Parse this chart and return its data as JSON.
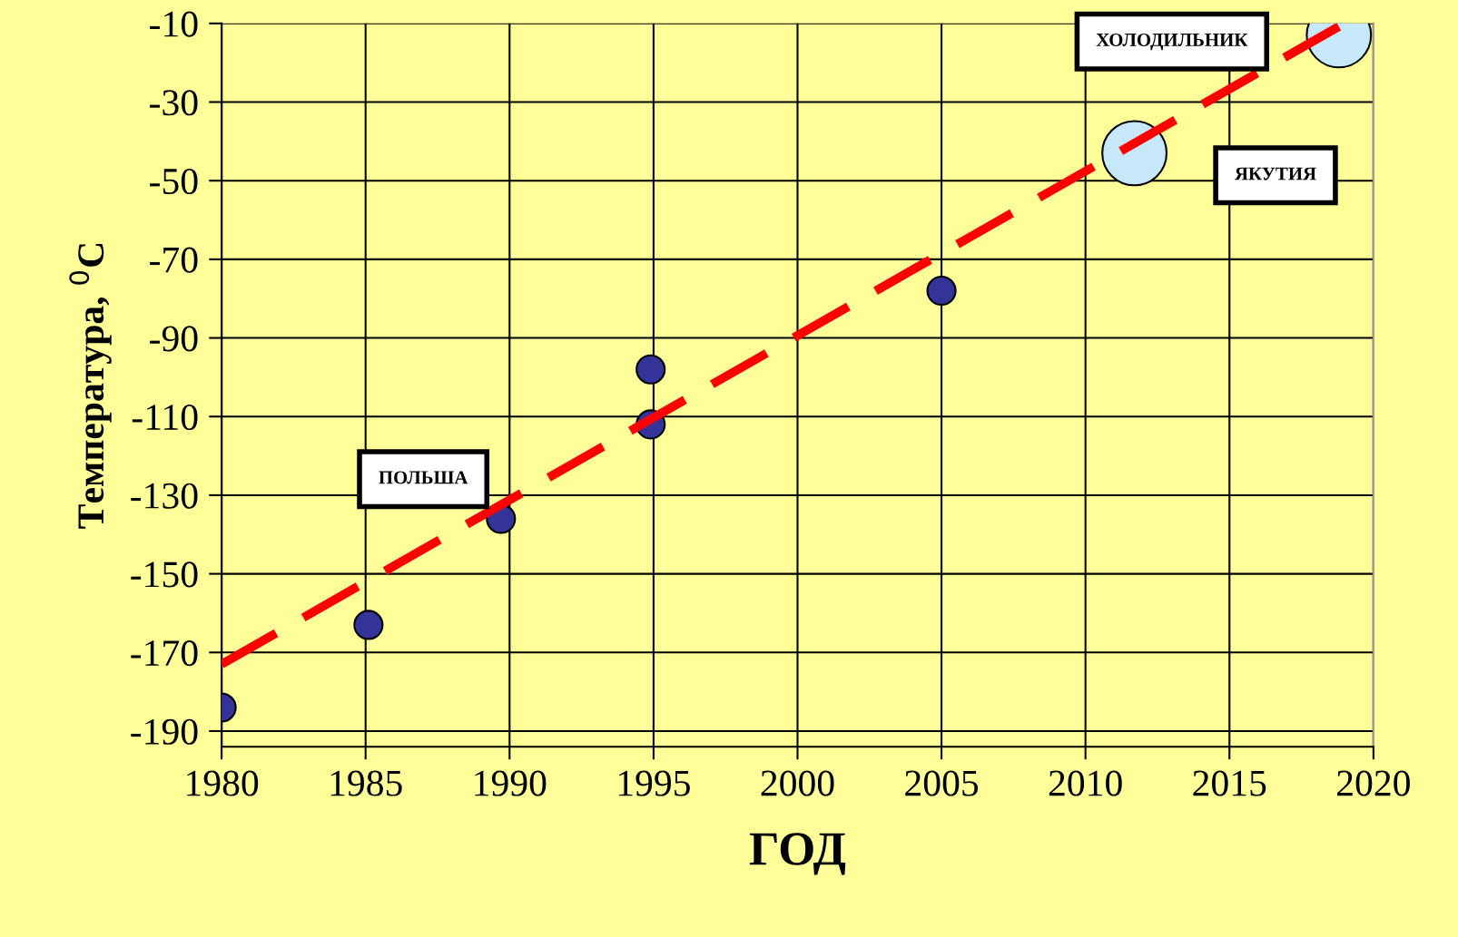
{
  "chart_data": {
    "type": "scatter",
    "xlabel": "ГОД",
    "ylabel": "Температура, $^{0}$С",
    "xlim": [
      1980,
      2020
    ],
    "xticks": [
      1980,
      1985,
      1990,
      1995,
      2000,
      2005,
      2010,
      2015,
      2020
    ],
    "ylim": [
      -194,
      -10
    ],
    "yticks": [
      -190,
      -170,
      -150,
      -130,
      -110,
      -90,
      -70,
      -50,
      -30,
      -10
    ],
    "grid": true,
    "marker": "circle",
    "series": [
      {
        "color": "#333399",
        "x": [
          1980,
          1985.1,
          1989.7,
          1994.9,
          1994.9,
          2005
        ],
        "values": [
          -184,
          -163,
          -136,
          -98,
          -112,
          -78
        ]
      },
      {
        "type": "scatter",
        "color": "#c6e8f8",
        "x": [
          2011.7,
          2018.8
        ],
        "values": [
          -43,
          -13
        ]
      },
      {
        "type": "line",
        "color": "#ff0000",
        "line_style": "dashed",
        "marker": "none",
        "x": [
          1980,
          2018.8
        ],
        "values": [
          -173,
          -10.8
        ]
      }
    ],
    "annotations": [
      "ПОЛЬША",
      "ХОЛОДИЛЬНИК",
      "ЯКУТИЯ"
    ]
  }
}
